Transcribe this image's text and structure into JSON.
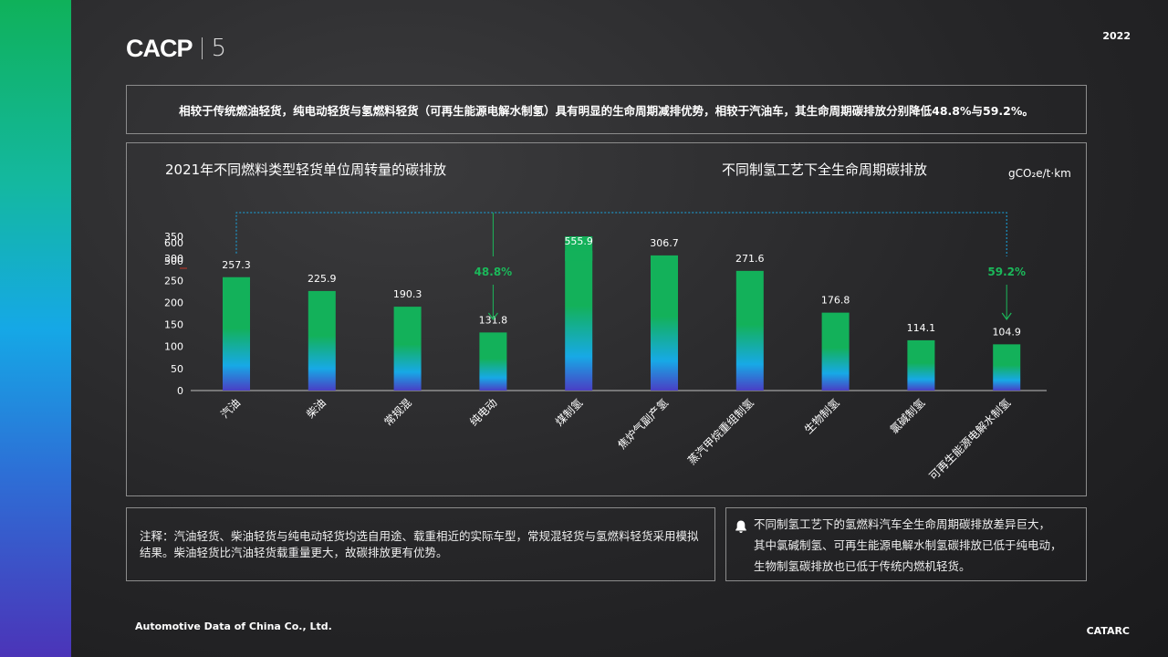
{
  "header": {
    "logo_text": "CACP",
    "logo_number": "5",
    "year": "2022"
  },
  "headline": "相较于传统燃油轻货，纯电动轻货与氢燃料轻货（可再生能源电解水制氢）具有明显的生命周期减排优势，相较于汽油车，其生命周期碳排放分别降低48.8%与59.2%。",
  "chart_data": {
    "type": "bar",
    "title": "2021年不同燃料类型轻货单位周转量的碳排放",
    "subtitle": "不同制氢工艺下全生命周期碳排放",
    "unit": "gCO₂e/t·km",
    "categories": [
      "汽油",
      "柴油",
      "常规混",
      "纯电动",
      "煤制氢",
      "焦炉气副产氢",
      "蒸汽甲烷重组制氢",
      "生物制氢",
      "氯碱制氢",
      "可再生能源电解水制氢"
    ],
    "values": [
      257.3,
      225.9,
      190.3,
      131.8,
      555.9,
      306.7,
      271.6,
      176.8,
      114.1,
      104.9
    ],
    "value_labels": [
      "257.3",
      "225.9",
      "190.3",
      "131.8",
      "555.9",
      "306.7",
      "271.6",
      "176.8",
      "114.1",
      "104.9"
    ],
    "y_ticks": [
      "0",
      "50",
      "100",
      "150",
      "200",
      "250",
      "300",
      "350",
      "500",
      "600"
    ],
    "axis_break": [
      350,
      500
    ],
    "annotations": [
      {
        "label": "48.8%",
        "category_index": 3
      },
      {
        "label": "59.2%",
        "category_index": 9
      }
    ],
    "colors": {
      "top": "#13b15a",
      "mid": "#17a9e6",
      "bottom": "#4a3fc4",
      "accent": "#1bb85a"
    }
  },
  "note": "注释：汽油轻货、柴油轻货与纯电动轻货均选自用途、载重相近的实际车型，常规混轻货与氢燃料轻货采用模拟结果。柴油轻货比汽油轻货载重量更大，故碳排放更有优势。",
  "insight": {
    "icon": "bell-icon",
    "lines": [
      "不同制氢工艺下的氢燃料汽车全生命周期碳排放差异巨大，",
      "其中氯碱制氢、可再生能源电解水制氢碳排放已低于纯电动，",
      "生物制氢碳排放也已低于传统内燃机轻货。"
    ]
  },
  "footer": {
    "left": "Automotive Data of China Co., Ltd.",
    "right": "CATARC"
  }
}
